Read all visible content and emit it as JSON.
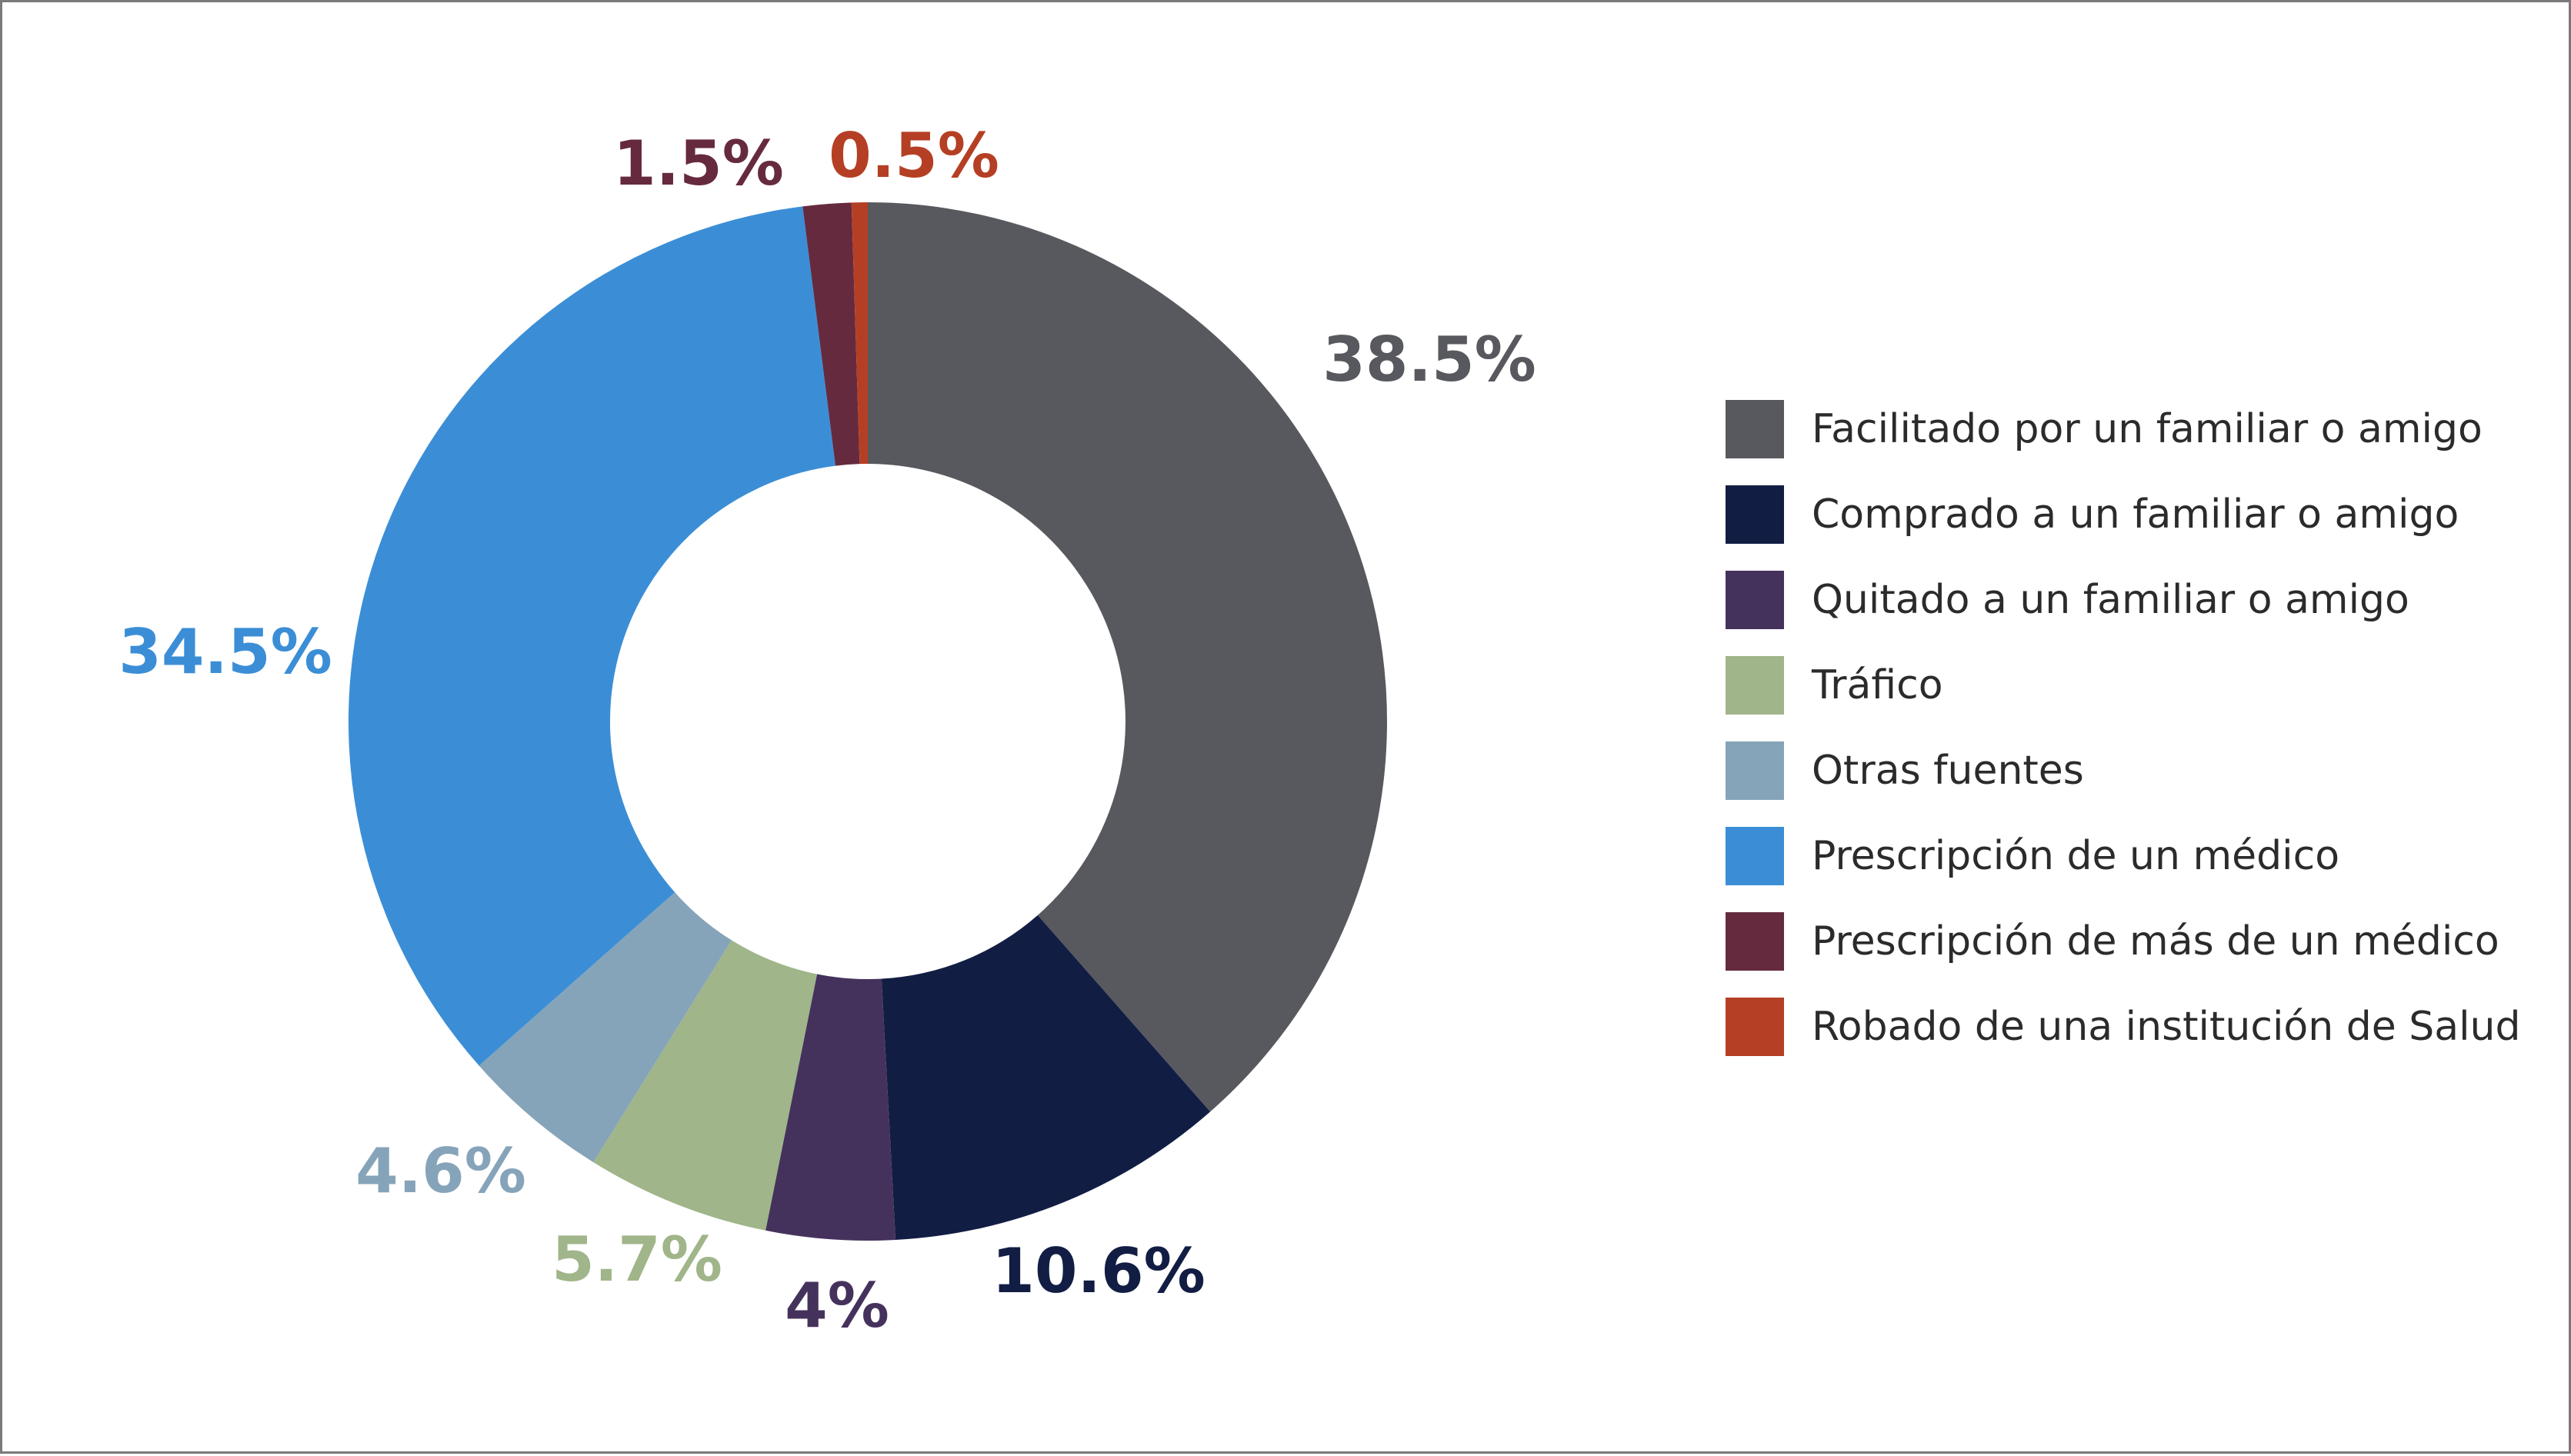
{
  "chart_data": {
    "type": "pie",
    "variant": "donut",
    "categories": [
      "Facilitado por un familiar o amigo",
      "Comprado a un familiar o amigo",
      "Quitado a un familiar o amigo",
      "Tráfico",
      "Otras fuentes",
      "Prescripción de un médico",
      "Prescripción de más de un médico",
      "Robado de una institución de Salud"
    ],
    "values": [
      38.5,
      10.6,
      4,
      5.7,
      4.6,
      34.5,
      1.5,
      0.5
    ],
    "value_labels": [
      "38.5%",
      "10.6%",
      "4%",
      "5.7%",
      "4.6%",
      "34.5%",
      "1.5%",
      "0.5%"
    ],
    "colors": [
      "#58595f",
      "#121d44",
      "#45325c",
      "#a0b589",
      "#86a4b9",
      "#3b8ed6",
      "#662a3e",
      "#b53f24"
    ],
    "legend_position": "right",
    "start_angle": "12 o'clock, clockwise"
  }
}
